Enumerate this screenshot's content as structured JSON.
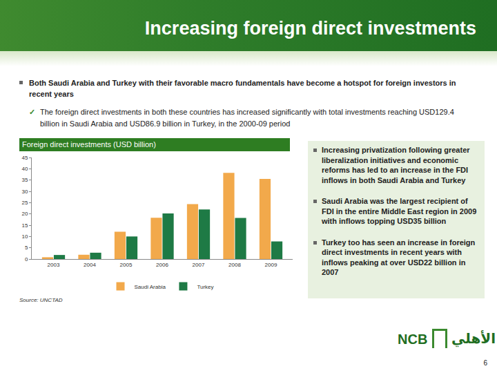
{
  "slide": {
    "title": "Increasing foreign direct investments",
    "bullets": [
      {
        "text": "Both Saudi Arabia and Turkey with their favorable macro fundamentals have become a hotspot for foreign investors in recent years",
        "sub": [
          "The foreign direct investments in both these countries has increased significantly with total investments reaching USD129.4 billion in Saudi Arabia and USD86.9 billion in Turkey, in the 2000-09 period"
        ]
      }
    ],
    "side_notes": [
      "Increasing privatization following greater liberalization initiatives and economic reforms has led to an increase in the FDI inflows in both Saudi Arabia and Turkey",
      "Saudi Arabia was the largest recipient of FDI in the entire Middle East region in 2009 with inflows topping USD35 billion",
      "Turkey too has seen an increase in foreign direct investments in recent years with inflows peaking at over USD22 billion in 2007"
    ],
    "source": "Source: UNCTAD",
    "logo": {
      "text": "NCB",
      "arabic": "الأهلي"
    },
    "page": "6"
  },
  "chart_data": {
    "type": "bar",
    "title": "Foreign direct investments (USD billion)",
    "categories": [
      "2003",
      "2004",
      "2005",
      "2006",
      "2007",
      "2008",
      "2009"
    ],
    "series": [
      {
        "name": "Saudi Arabia",
        "color": "#f2a94b",
        "values": [
          0.8,
          1.9,
          12.1,
          18.3,
          24.3,
          38.2,
          35.5
        ]
      },
      {
        "name": "Turkey",
        "color": "#1e7a45",
        "values": [
          1.8,
          2.8,
          10.0,
          20.2,
          22.0,
          18.2,
          7.8
        ]
      }
    ],
    "ylim": [
      0,
      45
    ],
    "yticks": [
      0,
      5,
      10,
      15,
      20,
      25,
      30,
      35,
      40,
      45
    ],
    "grid": false,
    "legend": "bottom"
  }
}
